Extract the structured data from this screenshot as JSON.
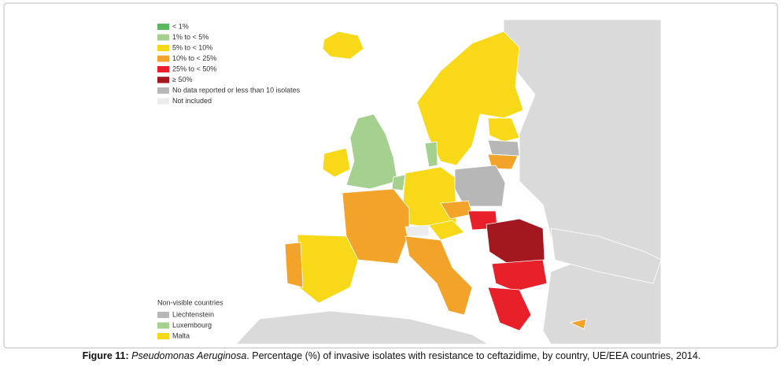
{
  "legend": {
    "items": [
      {
        "label": "< 1%",
        "color": "#5cb85c"
      },
      {
        "label": "1% to < 5%",
        "color": "#a5d08f"
      },
      {
        "label": "5% to < 10%",
        "color": "#f7d91a"
      },
      {
        "label": "10% to < 25%",
        "color": "#f2a32a"
      },
      {
        "label": "25% to < 50%",
        "color": "#e8202a"
      },
      {
        "label": "≥ 50%",
        "color": "#a3171e"
      },
      {
        "label": "No data reported or less than 10 isolates",
        "color": "#b7b7b7"
      },
      {
        "label": "Not included",
        "color": "#ececec"
      }
    ]
  },
  "non_visible": {
    "title": "Non-visible countries",
    "items": [
      {
        "label": "Liechtenstein",
        "color": "#b7b7b7"
      },
      {
        "label": "Luxembourg",
        "color": "#a5d08f"
      },
      {
        "label": "Malta",
        "color": "#f7d91a"
      }
    ]
  },
  "caption": {
    "label": "Figure 11:",
    "species": "Pseudomonas Aeruginosa",
    "text": ". Percentage (%) of invasive isolates with resistance to   ceftazidime, by country, UE/EEA countries, 2014."
  }
}
